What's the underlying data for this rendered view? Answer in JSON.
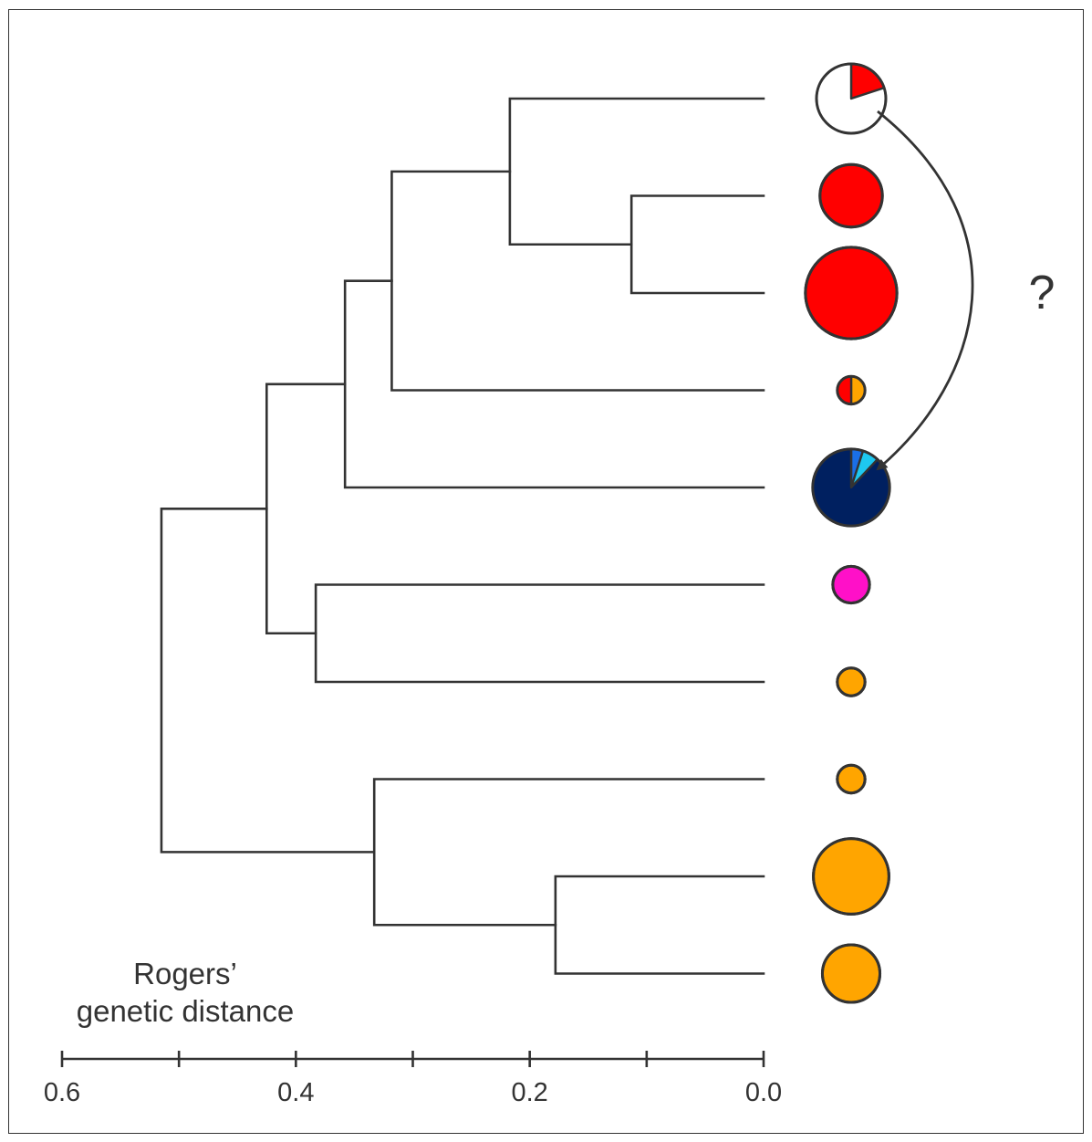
{
  "axis": {
    "title_line1": "Rogers’",
    "title_line2": "genetic distance",
    "ticks": [
      {
        "value": 0.6,
        "label": "0.6"
      },
      {
        "value": 0.5,
        "label": ""
      },
      {
        "value": 0.4,
        "label": "0.4"
      },
      {
        "value": 0.3,
        "label": ""
      },
      {
        "value": 0.2,
        "label": "0.2"
      },
      {
        "value": 0.1,
        "label": ""
      },
      {
        "value": 0.0,
        "label": "0.0"
      }
    ]
  },
  "tree": {
    "leaves": 10,
    "nodes": [
      {
        "id": "n01",
        "height": 0.217,
        "children": [
          "L0",
          "n12"
        ]
      },
      {
        "id": "n12",
        "height": 0.113,
        "children": [
          "L1",
          "L2"
        ]
      },
      {
        "id": "n03",
        "height": 0.318,
        "children": [
          "n01",
          "L3"
        ]
      },
      {
        "id": "n04",
        "height": 0.358,
        "children": [
          "n03",
          "L4"
        ]
      },
      {
        "id": "n56",
        "height": 0.383,
        "children": [
          "L5",
          "L6"
        ]
      },
      {
        "id": "n06",
        "height": 0.425,
        "children": [
          "n04",
          "n56"
        ]
      },
      {
        "id": "n89",
        "height": 0.178,
        "children": [
          "L8",
          "L9"
        ]
      },
      {
        "id": "n79",
        "height": 0.333,
        "children": [
          "L7",
          "n89"
        ]
      },
      {
        "id": "root",
        "height": 0.515,
        "children": [
          "n06",
          "n79"
        ]
      }
    ]
  },
  "pies": [
    {
      "leaf": 0,
      "size": 1.0,
      "slices": [
        {
          "color": "#ff0000",
          "value": 0.2
        },
        {
          "color": "#ffffff",
          "value": 0.8
        }
      ]
    },
    {
      "leaf": 1,
      "size": 0.9,
      "slices": [
        {
          "color": "#ff0000",
          "value": 1.0
        }
      ]
    },
    {
      "leaf": 2,
      "size": 1.32,
      "slices": [
        {
          "color": "#ff0000",
          "value": 1.0
        }
      ]
    },
    {
      "leaf": 3,
      "size": 0.4,
      "slices": [
        {
          "color": "#ffa500",
          "value": 0.5
        },
        {
          "color": "#ff0000",
          "value": 0.5
        }
      ]
    },
    {
      "leaf": 4,
      "size": 1.11,
      "slices": [
        {
          "color": "#1a6fe6",
          "value": 0.05
        },
        {
          "color": "#1ec8f0",
          "value": 0.07
        },
        {
          "color": "#002060",
          "value": 0.88
        }
      ]
    },
    {
      "leaf": 5,
      "size": 0.53,
      "slices": [
        {
          "color": "#ff10c8",
          "value": 1.0
        }
      ]
    },
    {
      "leaf": 6,
      "size": 0.4,
      "slices": [
        {
          "color": "#ffa500",
          "value": 1.0
        }
      ]
    },
    {
      "leaf": 7,
      "size": 0.4,
      "slices": [
        {
          "color": "#ffa500",
          "value": 1.0
        }
      ]
    },
    {
      "leaf": 8,
      "size": 1.09,
      "slices": [
        {
          "color": "#ffa500",
          "value": 1.0
        }
      ]
    },
    {
      "leaf": 9,
      "size": 0.83,
      "slices": [
        {
          "color": "#ffa500",
          "value": 1.0
        }
      ]
    }
  ],
  "migration": {
    "from_leaf": 0,
    "to_leaf": 4,
    "label": "?"
  }
}
